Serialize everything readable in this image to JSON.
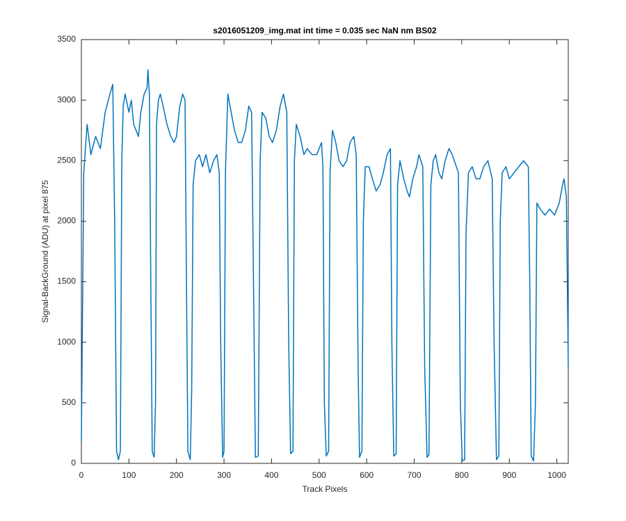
{
  "chart_data": {
    "type": "line",
    "title": "s2016051209_img.mat int time = 0.035 sec  NaN nm BS02",
    "xlabel": "Track Pixels",
    "ylabel": "Signal-BackGround (ADU) at pixel 875",
    "color": "#0072bd",
    "xlim": [
      0,
      1024
    ],
    "ylim": [
      0,
      3500
    ],
    "xticks": [
      0,
      100,
      200,
      300,
      400,
      500,
      600,
      700,
      800,
      900,
      1000
    ],
    "yticks": [
      0,
      500,
      1000,
      1500,
      2000,
      2500,
      3000,
      3500
    ],
    "x": [
      0,
      5,
      12,
      20,
      30,
      40,
      50,
      60,
      66,
      70,
      74,
      78,
      82,
      85,
      88,
      92,
      100,
      105,
      110,
      120,
      125,
      132,
      138,
      140,
      143,
      146,
      149,
      153,
      156,
      158,
      162,
      166,
      172,
      180,
      188,
      195,
      200,
      207,
      213,
      218,
      221,
      224,
      229,
      232,
      235,
      240,
      248,
      255,
      262,
      270,
      278,
      285,
      290,
      293,
      297,
      300,
      303,
      308,
      315,
      322,
      330,
      337,
      345,
      352,
      358,
      362,
      366,
      372,
      376,
      380,
      388,
      395,
      402,
      410,
      418,
      425,
      432,
      436,
      440,
      445,
      448,
      452,
      460,
      468,
      475,
      485,
      495,
      505,
      508,
      511,
      515,
      520,
      523,
      528,
      535,
      542,
      550,
      558,
      565,
      573,
      578,
      582,
      585,
      590,
      593,
      597,
      605,
      612,
      620,
      628,
      635,
      643,
      650,
      653,
      657,
      662,
      665,
      670,
      678,
      685,
      690,
      697,
      705,
      710,
      718,
      722,
      727,
      731,
      735,
      740,
      745,
      752,
      758,
      765,
      773,
      780,
      793,
      797,
      801,
      806,
      809,
      814,
      822,
      830,
      838,
      846,
      855,
      864,
      868,
      873,
      878,
      881,
      885,
      893,
      900,
      910,
      920,
      930,
      940,
      943,
      946,
      951,
      955,
      958,
      965,
      975,
      985,
      995,
      1005,
      1012,
      1015,
      1020,
      1024
    ],
    "values": [
      180,
      2400,
      2800,
      2550,
      2700,
      2600,
      2900,
      3050,
      3130,
      2000,
      100,
      30,
      100,
      2500,
      2950,
      3050,
      2900,
      3000,
      2800,
      2700,
      2900,
      3050,
      3100,
      3250,
      3050,
      1500,
      100,
      50,
      500,
      2800,
      3000,
      3050,
      2950,
      2800,
      2700,
      2650,
      2700,
      2950,
      3050,
      3000,
      1500,
      100,
      30,
      600,
      2300,
      2500,
      2550,
      2450,
      2550,
      2400,
      2500,
      2550,
      2400,
      1000,
      50,
      100,
      2400,
      3050,
      2900,
      2750,
      2650,
      2650,
      2750,
      2950,
      2900,
      1500,
      50,
      60,
      2500,
      2900,
      2850,
      2700,
      2650,
      2750,
      2950,
      3050,
      2900,
      1000,
      80,
      100,
      2500,
      2800,
      2700,
      2550,
      2600,
      2550,
      2550,
      2650,
      2450,
      500,
      60,
      100,
      2400,
      2750,
      2650,
      2500,
      2450,
      2500,
      2650,
      2700,
      2550,
      800,
      50,
      100,
      2000,
      2450,
      2450,
      2350,
      2250,
      2300,
      2400,
      2550,
      2600,
      1000,
      60,
      80,
      2300,
      2500,
      2350,
      2250,
      2200,
      2350,
      2450,
      2550,
      2450,
      800,
      50,
      70,
      2300,
      2500,
      2550,
      2400,
      2350,
      2500,
      2600,
      2550,
      2400,
      500,
      20,
      30,
      1900,
      2400,
      2450,
      2350,
      2350,
      2450,
      2500,
      2350,
      1000,
      30,
      60,
      2000,
      2400,
      2450,
      2350,
      2400,
      2450,
      2500,
      2450,
      1500,
      60,
      20,
      500,
      2150,
      2100,
      2050,
      2100,
      2050,
      2150,
      2300,
      2350,
      2200,
      800
    ]
  }
}
